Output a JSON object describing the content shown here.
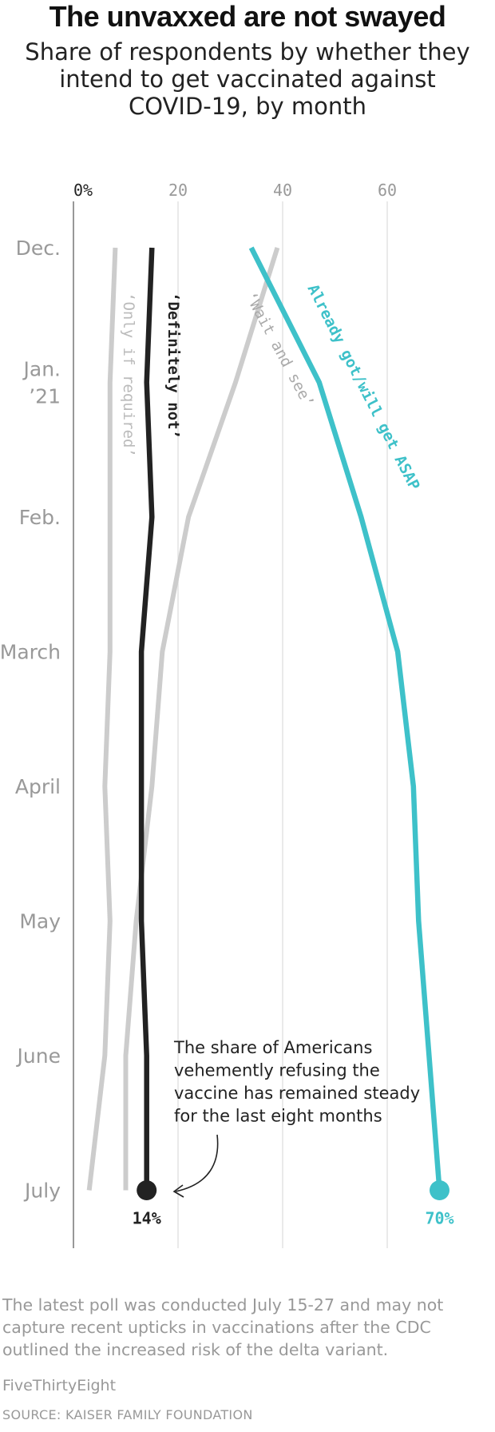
{
  "header": {
    "title": "The unvaxxed are not swayed",
    "subtitle_lines": [
      "Share of respondents by whether they",
      "intend to get vaccinated against",
      "COVID-19, by month"
    ]
  },
  "chart_data": {
    "type": "line",
    "orientation": "vertical-time",
    "x_axis": {
      "min": 0,
      "max": 72,
      "ticks": [
        0,
        20,
        40,
        60
      ],
      "tick_labels": [
        "0%",
        "20",
        "40",
        "60"
      ]
    },
    "months": [
      [
        "Dec."
      ],
      [
        "Jan.",
        "’21"
      ],
      [
        "Feb."
      ],
      [
        "March"
      ],
      [
        "April"
      ],
      [
        "May"
      ],
      [
        "June"
      ],
      [
        "July"
      ]
    ],
    "series": [
      {
        "name": "‘Only if required’",
        "color": "#cccccc",
        "values": [
          8,
          7,
          7,
          7,
          6,
          7,
          6,
          3
        ]
      },
      {
        "name": "‘Wait and see’",
        "color": "#cccccc",
        "values": [
          39,
          31,
          22,
          17,
          15,
          12,
          10,
          10
        ]
      },
      {
        "name": "‘Definitely not’",
        "color": "#222222",
        "values": [
          15,
          14,
          15,
          13,
          13,
          13,
          14,
          14
        ],
        "end_label": "14%"
      },
      {
        "name": "Already got/will get ASAP",
        "color": "#3ec1c9",
        "values": [
          34,
          47,
          55,
          62,
          65,
          66,
          68,
          70
        ],
        "end_label": "70%"
      }
    ],
    "annotation_lines": [
      "The share of Americans",
      "vehemently refusing the",
      "vaccine has remained steady",
      "for the last eight months"
    ]
  },
  "footer": {
    "note": "The latest poll was conducted July 15-27 and may not capture recent upticks in vaccinations after the CDC outlined the increased risk of the delta variant.",
    "brand": "FiveThirtyEight",
    "source": "SOURCE: KAISER FAMILY FOUNDATION"
  }
}
